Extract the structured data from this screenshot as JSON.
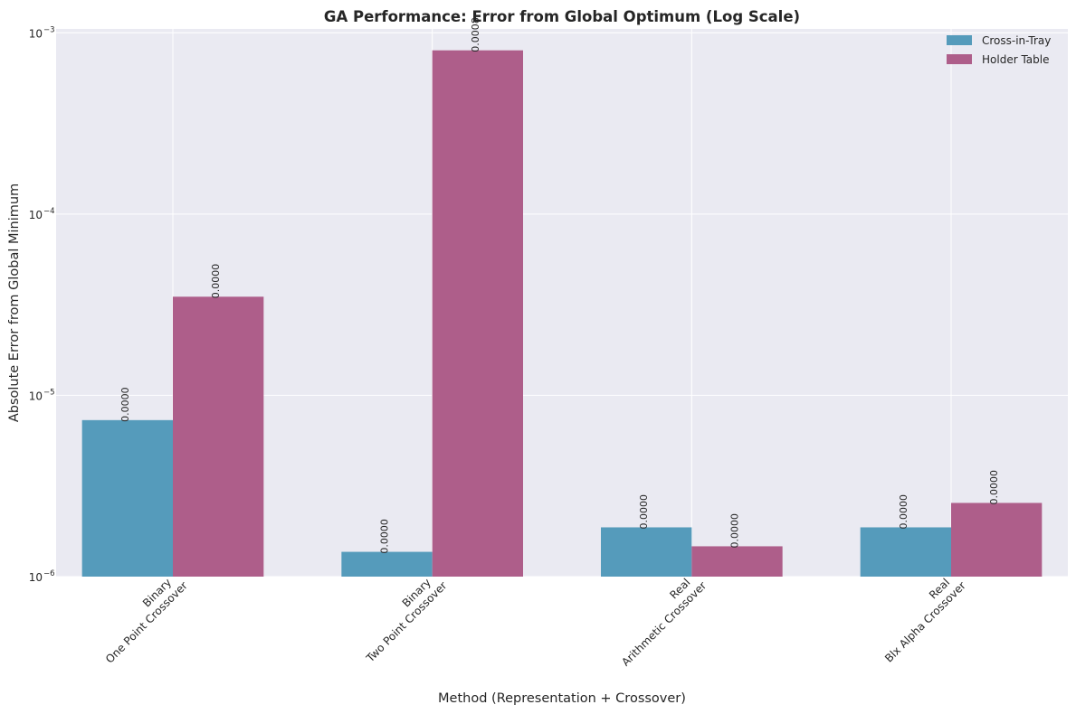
{
  "chart_data": {
    "type": "bar",
    "title": "GA Performance: Error from Global Optimum (Log Scale)",
    "xlabel": "Method (Representation + Crossover)",
    "ylabel": "Absolute Error from Global Minimum",
    "yscale": "log",
    "ylim": [
      1e-06,
      0.00105
    ],
    "yticks": [
      {
        "base": "10",
        "exp": "−6",
        "value": 1e-06
      },
      {
        "base": "10",
        "exp": "−5",
        "value": 1e-05
      },
      {
        "base": "10",
        "exp": "−4",
        "value": 0.0001
      },
      {
        "base": "10",
        "exp": "−3",
        "value": 0.001
      }
    ],
    "categories": [
      [
        "Binary",
        "One Point Crossover"
      ],
      [
        "Binary",
        "Two Point Crossover"
      ],
      [
        "Real",
        "Arithmetic Crossover"
      ],
      [
        "Real",
        "Blx Alpha Crossover"
      ]
    ],
    "series": [
      {
        "name": "Cross-in-Tray",
        "color": "#559bbb",
        "values": [
          7.3e-06,
          1.37e-06,
          1.87e-06,
          1.87e-06
        ],
        "labels": [
          "0.0000",
          "0.0000",
          "0.0000",
          "0.0000"
        ]
      },
      {
        "name": "Holder Table",
        "color": "#ae5e8a",
        "values": [
          3.5e-05,
          0.0008,
          1.47e-06,
          2.55e-06
        ],
        "labels": [
          "0.0000",
          "0.0008",
          "0.0000",
          "0.0000"
        ]
      }
    ],
    "grid": true,
    "legend_position": "top-right"
  }
}
